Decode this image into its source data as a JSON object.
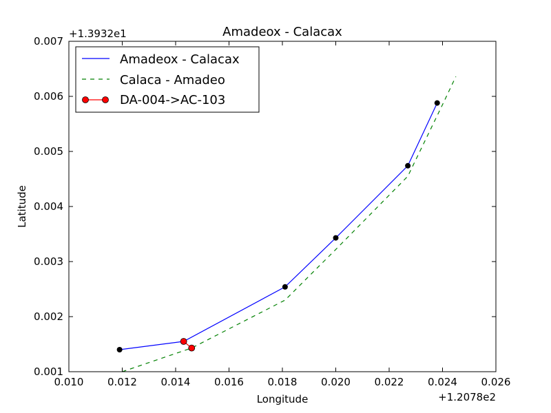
{
  "chart_data": {
    "type": "line",
    "title": "Amadeox - Calacax",
    "xlabel": "Longitude",
    "ylabel": "Latitude",
    "x_offset_label": "+1.2078e2",
    "y_offset_label": "+1.3932e1",
    "x_offset": 120.78,
    "y_offset": 13.932,
    "xlim": [
      0.01,
      0.026
    ],
    "ylim": [
      0.001,
      0.007
    ],
    "x_ticks": [
      0.01,
      0.012,
      0.014,
      0.016,
      0.018,
      0.02,
      0.022,
      0.024,
      0.026
    ],
    "x_tick_labels": [
      "0.010",
      "0.012",
      "0.014",
      "0.016",
      "0.018",
      "0.020",
      "0.022",
      "0.024",
      "0.026"
    ],
    "y_ticks": [
      0.001,
      0.002,
      0.003,
      0.004,
      0.005,
      0.006,
      0.007
    ],
    "y_tick_labels": [
      "0.001",
      "0.002",
      "0.003",
      "0.004",
      "0.005",
      "0.006",
      "0.007"
    ],
    "grid": false,
    "legend_position": "top-left",
    "series": [
      {
        "name": "Amadeox - Calacax",
        "style": "solid",
        "color": "#0000ff",
        "x": [
          0.0119,
          0.0143,
          0.0181,
          0.02,
          0.0227,
          0.0238
        ],
        "y": [
          0.0014,
          0.00155,
          0.00254,
          0.00343,
          0.00474,
          0.00588
        ]
      },
      {
        "name": "Calaca - Amadeo",
        "style": "dashed",
        "color": "#008000",
        "x": [
          0.012,
          0.0146,
          0.0181,
          0.02,
          0.0227,
          0.024,
          0.0245
        ],
        "y": [
          0.001,
          0.00143,
          0.0023,
          0.00322,
          0.00455,
          0.00585,
          0.00636
        ]
      },
      {
        "name": "DA-004->AC-103",
        "style": "solid-marker",
        "color": "#ff0000",
        "x": [
          0.0143,
          0.0146
        ],
        "y": [
          0.00155,
          0.00143
        ]
      }
    ],
    "extra_markers": {
      "color": "#000000",
      "x": [
        0.0119,
        0.0181,
        0.02,
        0.0227,
        0.0238
      ],
      "y": [
        0.0014,
        0.00254,
        0.00343,
        0.00474,
        0.00588
      ]
    }
  }
}
